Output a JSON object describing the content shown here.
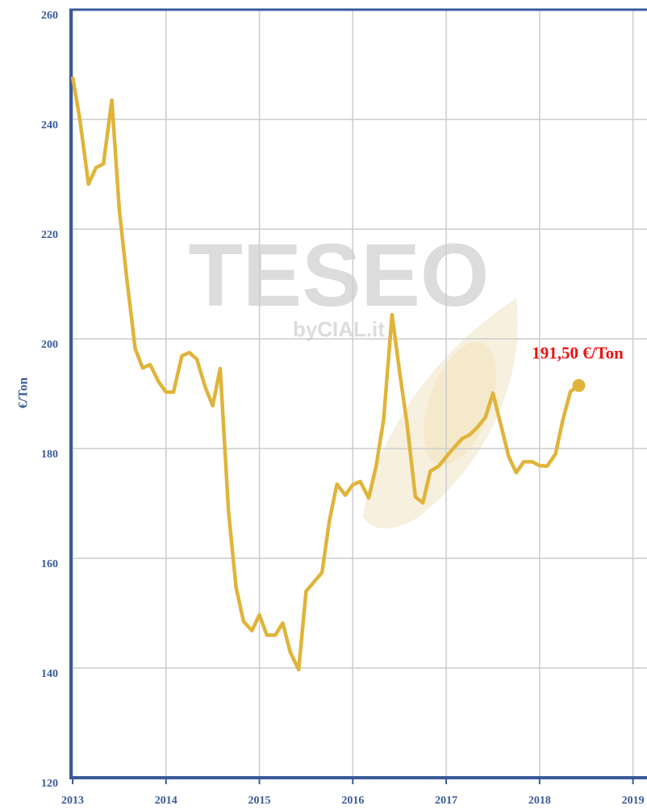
{
  "chart_data": {
    "type": "line",
    "y_label": "€/Ton",
    "annotation": "191,50 €/Ton",
    "watermark": "TESEO",
    "watermark_sub": "byCIAL.it",
    "x": [
      2013,
      2013.08,
      2013.17,
      2013.25,
      2013.33,
      2013.42,
      2013.5,
      2013.58,
      2013.67,
      2013.75,
      2013.83,
      2013.92,
      2014,
      2014.08,
      2014.17,
      2014.25,
      2014.33,
      2014.42,
      2014.5,
      2014.58,
      2014.67,
      2014.75,
      2014.83,
      2014.92,
      2015,
      2015.08,
      2015.17,
      2015.25,
      2015.33,
      2015.42,
      2015.5,
      2015.58,
      2015.67,
      2015.75,
      2015.83,
      2015.92,
      2016,
      2016.08,
      2016.17,
      2016.25,
      2016.33,
      2016.42,
      2016.5,
      2016.58,
      2016.67,
      2016.75,
      2016.83,
      2016.92,
      2017,
      2017.08,
      2017.17,
      2017.25,
      2017.33,
      2017.42,
      2017.5,
      2017.58,
      2017.67,
      2017.75,
      2017.83,
      2017.92,
      2018,
      2018.08,
      2018.17,
      2018.25,
      2018.33,
      2018.42
    ],
    "series": [
      {
        "color": "#e0b43a",
        "values": [
          247.8,
          239.7,
          228.2,
          231.2,
          231.9,
          243.5,
          223.5,
          211,
          198.2,
          194.7,
          195.3,
          192.2,
          190.3,
          190.3,
          196.9,
          197.5,
          196.3,
          191.2,
          187.8,
          194.6,
          168.4,
          154.7,
          148.5,
          146.8,
          149.7,
          146,
          146,
          148.2,
          142.9,
          139.7,
          154,
          155.6,
          157.4,
          166.9,
          173.5,
          171.5,
          173.4,
          174,
          171,
          176.8,
          185.3,
          204.4,
          194.1,
          184.6,
          171.2,
          170.1,
          175.9,
          176.8,
          178.5,
          180.1,
          181.8,
          182.5,
          183.8,
          185.7,
          190.1,
          184.7,
          178.5,
          175.6,
          177.6,
          177.6,
          176.9,
          176.8,
          179,
          185.3,
          190.4,
          191.5
        ]
      }
    ],
    "xlim": [
      2013,
      2019.15
    ],
    "xticks": [
      2013,
      2014,
      2015,
      2016,
      2017,
      2018,
      2019
    ],
    "ylim": [
      120,
      260
    ],
    "yticks": [
      120,
      140,
      160,
      180,
      200,
      220,
      240,
      260
    ],
    "grid": true,
    "axis_color": "#3a5a9a",
    "annotation_color": "#ee1111"
  }
}
